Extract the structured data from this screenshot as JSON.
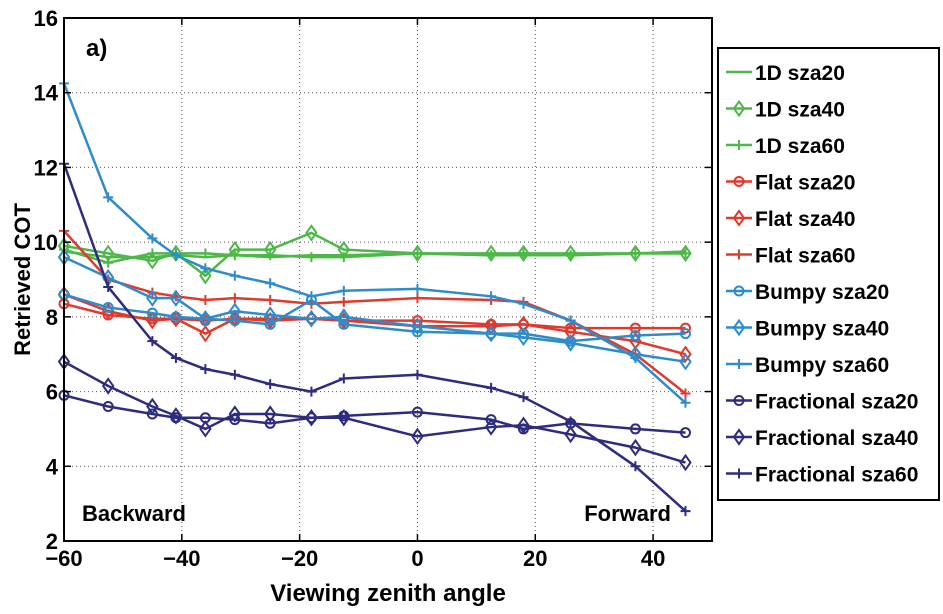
{
  "chart_data": {
    "type": "line",
    "panel_label": "a)",
    "xlabel": "Viewing zenith angle",
    "ylabel": "Retrieved COT",
    "xlim": [
      -60,
      50
    ],
    "ylim": [
      2,
      16
    ],
    "xticks": [
      -60,
      -40,
      -20,
      0,
      20,
      40
    ],
    "yticks": [
      2,
      4,
      6,
      8,
      10,
      12,
      14,
      16
    ],
    "grid": true,
    "legend_position": "outside-right",
    "annotations": [
      {
        "text": "Backward",
        "position": "bottom-left"
      },
      {
        "text": "Forward",
        "position": "bottom-right"
      }
    ],
    "x": [
      -60,
      -52.5,
      -45,
      -41,
      -36,
      -31,
      -25,
      -18,
      -12.5,
      0,
      12.5,
      18,
      26,
      37,
      45.5
    ],
    "series": [
      {
        "name": "1D sza20",
        "color": "#4db848",
        "marker": "none",
        "values": [
          9.75,
          9.6,
          9.6,
          9.65,
          9.6,
          9.65,
          9.6,
          9.65,
          9.65,
          9.7,
          9.65,
          9.65,
          9.65,
          9.7,
          9.75
        ]
      },
      {
        "name": "1D sza40",
        "color": "#4db848",
        "marker": "diamond",
        "values": [
          9.9,
          9.7,
          9.5,
          9.7,
          9.1,
          9.8,
          9.8,
          10.25,
          9.8,
          9.7,
          9.7,
          9.7,
          9.7,
          9.7,
          9.7
        ]
      },
      {
        "name": "1D sza60",
        "color": "#4db848",
        "marker": "plus",
        "values": [
          9.8,
          9.45,
          9.7,
          9.7,
          9.7,
          9.65,
          9.65,
          9.6,
          9.6,
          9.7,
          9.65,
          9.7,
          9.65,
          9.7,
          9.7
        ]
      },
      {
        "name": "Flat sza20",
        "color": "#e03a2e",
        "marker": "circle",
        "values": [
          8.35,
          8.05,
          7.95,
          7.95,
          7.9,
          7.95,
          7.95,
          7.95,
          7.9,
          7.9,
          7.8,
          7.8,
          7.7,
          7.7,
          7.7
        ]
      },
      {
        "name": "Flat sza40",
        "color": "#e03a2e",
        "marker": "diamond",
        "values": [
          8.6,
          8.15,
          7.9,
          7.95,
          7.55,
          7.95,
          7.9,
          7.95,
          7.9,
          7.75,
          7.75,
          7.8,
          7.6,
          7.35,
          7.0
        ]
      },
      {
        "name": "Flat sza60",
        "color": "#e03a2e",
        "marker": "plus",
        "values": [
          10.3,
          9.0,
          8.65,
          8.55,
          8.45,
          8.5,
          8.45,
          8.35,
          8.4,
          8.5,
          8.45,
          8.4,
          7.9,
          7.0,
          5.95
        ]
      },
      {
        "name": "Bumpy sza20",
        "color": "#2e8ccb",
        "marker": "circle",
        "values": [
          8.6,
          8.25,
          8.1,
          8.0,
          7.95,
          7.9,
          7.8,
          8.45,
          7.8,
          7.6,
          7.55,
          7.55,
          7.35,
          7.5,
          7.55
        ]
      },
      {
        "name": "Bumpy sza40",
        "color": "#2e8ccb",
        "marker": "diamond",
        "values": [
          9.6,
          9.05,
          8.5,
          8.5,
          7.95,
          8.15,
          8.05,
          7.95,
          8.0,
          7.75,
          7.55,
          7.45,
          7.3,
          7.0,
          6.8
        ]
      },
      {
        "name": "Bumpy sza60",
        "color": "#2e8ccb",
        "marker": "plus",
        "values": [
          14.25,
          11.2,
          10.1,
          9.65,
          9.3,
          9.1,
          8.9,
          8.55,
          8.7,
          8.75,
          8.55,
          8.35,
          7.9,
          6.9,
          5.7
        ]
      },
      {
        "name": "Fractional sza20",
        "color": "#2d2c7e",
        "marker": "circle",
        "values": [
          5.9,
          5.6,
          5.4,
          5.3,
          5.3,
          5.25,
          5.15,
          5.3,
          5.35,
          5.45,
          5.25,
          5.0,
          5.15,
          5.0,
          4.9
        ]
      },
      {
        "name": "Fractional sza40",
        "color": "#2d2c7e",
        "marker": "diamond",
        "values": [
          6.8,
          6.15,
          5.6,
          5.35,
          5.0,
          5.4,
          5.4,
          5.3,
          5.3,
          4.8,
          5.05,
          5.1,
          4.85,
          4.5,
          4.1
        ]
      },
      {
        "name": "Fractional sza60",
        "color": "#2d2c7e",
        "marker": "plus",
        "values": [
          12.1,
          8.8,
          7.35,
          6.9,
          6.6,
          6.45,
          6.2,
          6.0,
          6.35,
          6.45,
          6.1,
          5.85,
          5.2,
          4.0,
          2.8
        ]
      }
    ]
  }
}
